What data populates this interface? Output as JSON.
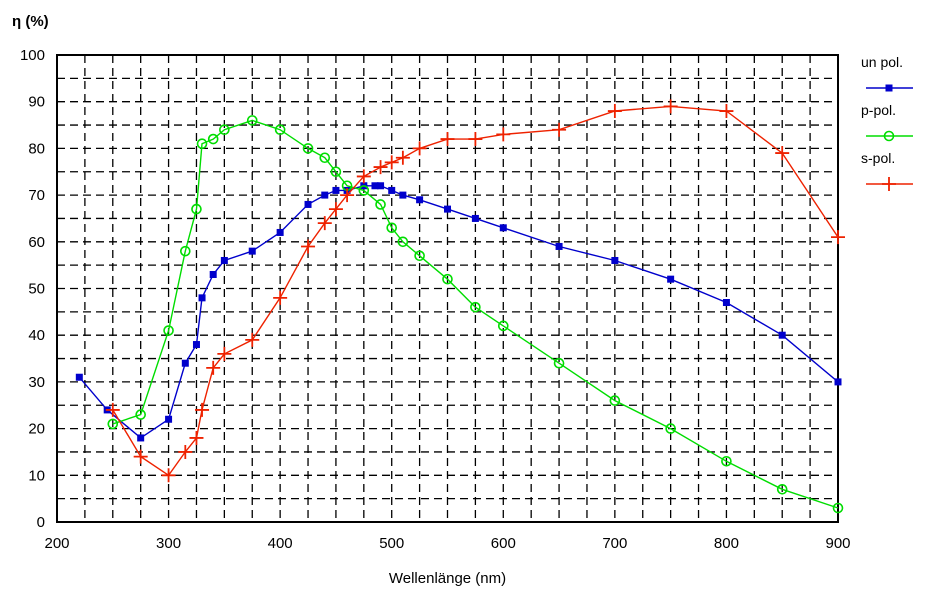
{
  "chart_data": {
    "type": "line",
    "ylabel": "η (%)",
    "xlabel": "Wellenlänge (nm)",
    "xlim": [
      200,
      900
    ],
    "ylim": [
      0,
      100
    ],
    "xticks": [
      200,
      300,
      400,
      500,
      600,
      700,
      800,
      900
    ],
    "yticks": [
      0,
      10,
      20,
      30,
      40,
      50,
      60,
      70,
      80,
      90,
      100
    ],
    "grid": true,
    "legend_position": "right",
    "series": [
      {
        "name": "un pol.",
        "color": "#0000cc",
        "marker": "square",
        "x": [
          220,
          245,
          275,
          300,
          315,
          325,
          330,
          340,
          350,
          375,
          400,
          425,
          440,
          450,
          460,
          475,
          485,
          490,
          500,
          510,
          525,
          550,
          575,
          600,
          650,
          700,
          750,
          800,
          850,
          900
        ],
        "y": [
          31,
          24,
          18,
          22,
          34,
          38,
          48,
          53,
          56,
          58,
          62,
          68,
          70,
          71,
          71,
          72,
          72,
          72,
          71,
          70,
          69,
          67,
          65,
          63,
          59,
          56,
          52,
          47,
          40,
          30
        ]
      },
      {
        "name": "p-pol.",
        "color": "#00dd00",
        "marker": "circle",
        "x": [
          250,
          275,
          300,
          315,
          325,
          330,
          340,
          350,
          375,
          400,
          425,
          440,
          450,
          460,
          475,
          490,
          500,
          510,
          525,
          550,
          575,
          600,
          650,
          700,
          750,
          800,
          850,
          900
        ],
        "y": [
          21,
          23,
          41,
          58,
          67,
          81,
          82,
          84,
          86,
          84,
          80,
          78,
          75,
          72,
          71,
          68,
          63,
          60,
          57,
          52,
          46,
          42,
          34,
          26,
          20,
          13,
          7,
          3
        ]
      },
      {
        "name": "s-pol.",
        "color": "#ee2200",
        "marker": "plus",
        "x": [
          250,
          275,
          300,
          315,
          325,
          330,
          340,
          350,
          375,
          400,
          425,
          440,
          450,
          460,
          475,
          490,
          500,
          510,
          525,
          550,
          575,
          600,
          650,
          700,
          750,
          800,
          850,
          900
        ],
        "y": [
          24,
          14,
          10,
          15,
          18,
          24,
          33,
          36,
          39,
          48,
          59,
          64,
          67,
          70,
          74,
          76,
          77,
          78,
          80,
          82,
          82,
          83,
          84,
          88,
          89,
          88,
          79,
          61
        ]
      }
    ]
  }
}
